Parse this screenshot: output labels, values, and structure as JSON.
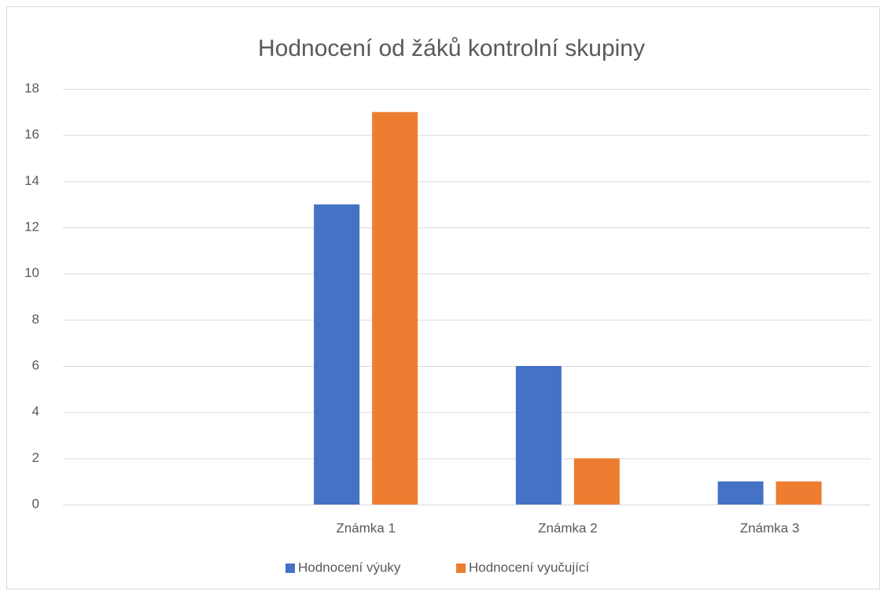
{
  "chart_data": {
    "type": "bar",
    "title": "Hodnocení od žáků kontrolní skupiny",
    "categories": [
      null,
      "Známka 1",
      "Známka 2",
      "Známka 3"
    ],
    "series": [
      {
        "name": "Hodnocení výuky",
        "color": "#4472c4",
        "values": [
          null,
          13,
          6,
          1
        ]
      },
      {
        "name": "Hodnocení vyučující",
        "color": "#ed7d31",
        "values": [
          null,
          17,
          2,
          1
        ]
      }
    ],
    "ylim": [
      0,
      18
    ],
    "yticks": [
      0,
      2,
      4,
      6,
      8,
      10,
      12,
      14,
      16,
      18
    ],
    "grid": true,
    "legend": "bottom"
  }
}
